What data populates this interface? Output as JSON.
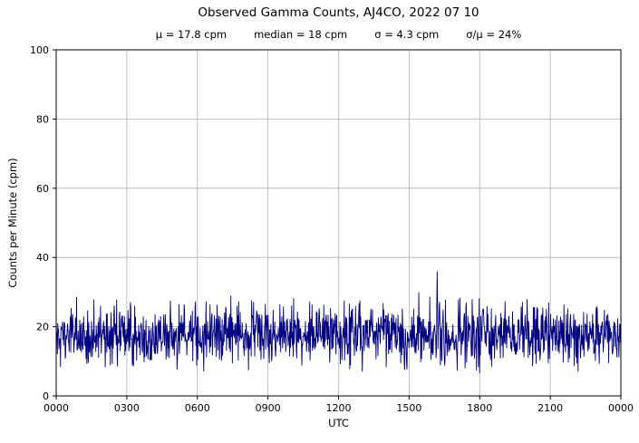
{
  "chart_data": {
    "type": "line",
    "title": "Observed Gamma Counts, AJ4CO, 2022 07 10",
    "stats": [
      "μ = 17.8 cpm",
      "median = 18 cpm",
      "σ = 4.3 cpm",
      "σ/μ = 24%"
    ],
    "xlabel": "UTC",
    "ylabel": "Counts per Minute (cpm)",
    "x_tick_labels": [
      "0000",
      "0300",
      "0600",
      "0900",
      "1200",
      "1500",
      "1800",
      "2100",
      "0000"
    ],
    "x_tick_hours": [
      0,
      3,
      6,
      9,
      12,
      15,
      18,
      21,
      24
    ],
    "y_tick_labels": [
      "0",
      "20",
      "40",
      "60",
      "80",
      "100"
    ],
    "y_tick_values": [
      0,
      20,
      40,
      60,
      80,
      100
    ],
    "ylim": [
      0,
      100
    ],
    "xlim_hours": [
      0,
      24
    ],
    "grid": true,
    "grid_color": "#b0b0b0",
    "axis_color": "#000000",
    "background": "#ffffff",
    "series": [
      {
        "name": "gamma-counts",
        "color": "#000080",
        "mean": 17.8,
        "median": 18,
        "sigma": 4.3,
        "min": 6.5,
        "max": 36,
        "n_points": 1440,
        "seed": 1337,
        "spike": {
          "hour": 16.2,
          "value": 36
        },
        "dip": {
          "hour": 18.0,
          "value": 6.5
        }
      }
    ]
  }
}
